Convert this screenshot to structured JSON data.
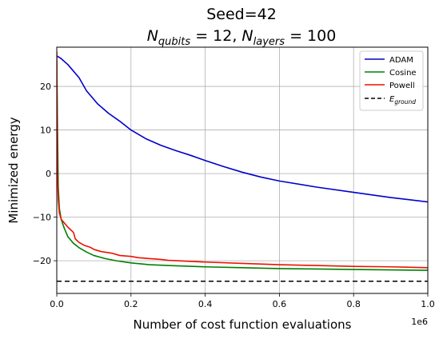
{
  "chart_data": {
    "type": "line",
    "title": "Seed=42",
    "subtitle": {
      "n_sym": "N",
      "qubits_sub": "qubits",
      "qubits_val": " = 12, ",
      "layers_sub": "layers",
      "layers_val": " = 100"
    },
    "xlabel": "Number of cost function evaluations",
    "ylabel": "Minimized energy",
    "x_offset_label": "1e6",
    "xlim": [
      0,
      1.0
    ],
    "ylim": [
      -27.5,
      29.0
    ],
    "x_tick_values": [
      0.0,
      0.2,
      0.4,
      0.6,
      0.8,
      1.0
    ],
    "x_tick_labels": [
      "0.0",
      "0.2",
      "0.4",
      "0.6",
      "0.8",
      "1.0"
    ],
    "y_tick_values": [
      -20,
      -10,
      0,
      10,
      20
    ],
    "y_tick_labels": [
      "−20",
      "−10",
      "0",
      "10",
      "20"
    ],
    "grid": true,
    "legend_position": "top-right",
    "series": [
      {
        "name": "ADAM",
        "color": "#0000cc",
        "dash": "solid",
        "points": [
          [
            0.0,
            27.0
          ],
          [
            0.01,
            26.5
          ],
          [
            0.03,
            25.0
          ],
          [
            0.06,
            22.0
          ],
          [
            0.08,
            19.0
          ],
          [
            0.11,
            16.0
          ],
          [
            0.14,
            13.8
          ],
          [
            0.17,
            12.0
          ],
          [
            0.2,
            10.0
          ],
          [
            0.24,
            8.0
          ],
          [
            0.28,
            6.5
          ],
          [
            0.32,
            5.3
          ],
          [
            0.36,
            4.2
          ],
          [
            0.4,
            3.0
          ],
          [
            0.45,
            1.6
          ],
          [
            0.5,
            0.3
          ],
          [
            0.55,
            -0.8
          ],
          [
            0.6,
            -1.7
          ],
          [
            0.7,
            -3.1
          ],
          [
            0.8,
            -4.3
          ],
          [
            0.9,
            -5.5
          ],
          [
            1.0,
            -6.5
          ]
        ]
      },
      {
        "name": "Cosine",
        "color": "#008000",
        "dash": "solid",
        "points": [
          [
            0.0,
            26.0
          ],
          [
            0.002,
            10.0
          ],
          [
            0.004,
            -3.0
          ],
          [
            0.007,
            -8.0
          ],
          [
            0.012,
            -10.5
          ],
          [
            0.02,
            -12.5
          ],
          [
            0.03,
            -14.5
          ],
          [
            0.045,
            -16.0
          ],
          [
            0.06,
            -17.0
          ],
          [
            0.08,
            -18.0
          ],
          [
            0.1,
            -18.8
          ],
          [
            0.13,
            -19.5
          ],
          [
            0.16,
            -20.0
          ],
          [
            0.2,
            -20.5
          ],
          [
            0.25,
            -20.9
          ],
          [
            0.3,
            -21.1
          ],
          [
            0.4,
            -21.4
          ],
          [
            0.5,
            -21.6
          ],
          [
            0.6,
            -21.8
          ],
          [
            0.7,
            -21.9
          ],
          [
            0.8,
            -22.0
          ],
          [
            0.9,
            -22.1
          ],
          [
            1.0,
            -22.2
          ]
        ]
      },
      {
        "name": "Powell",
        "color": "#ee1100",
        "dash": "solid",
        "points": [
          [
            0.0,
            28.0
          ],
          [
            0.002,
            0.0
          ],
          [
            0.004,
            -6.0
          ],
          [
            0.007,
            -9.0
          ],
          [
            0.012,
            -10.5
          ],
          [
            0.02,
            -11.3
          ],
          [
            0.03,
            -12.3
          ],
          [
            0.045,
            -13.5
          ],
          [
            0.05,
            -15.0
          ],
          [
            0.06,
            -15.8
          ],
          [
            0.075,
            -16.5
          ],
          [
            0.09,
            -16.9
          ],
          [
            0.1,
            -17.4
          ],
          [
            0.12,
            -17.9
          ],
          [
            0.15,
            -18.3
          ],
          [
            0.17,
            -18.8
          ],
          [
            0.2,
            -19.0
          ],
          [
            0.22,
            -19.3
          ],
          [
            0.25,
            -19.5
          ],
          [
            0.28,
            -19.7
          ],
          [
            0.3,
            -19.9
          ],
          [
            0.35,
            -20.1
          ],
          [
            0.4,
            -20.3
          ],
          [
            0.5,
            -20.6
          ],
          [
            0.6,
            -20.9
          ],
          [
            0.7,
            -21.1
          ],
          [
            0.8,
            -21.3
          ],
          [
            0.9,
            -21.4
          ],
          [
            1.0,
            -21.6
          ]
        ]
      },
      {
        "name": "E_ground",
        "color": "#000000",
        "dash": "dashed",
        "points": [
          [
            0.0,
            -24.7
          ],
          [
            1.0,
            -24.7
          ]
        ]
      }
    ],
    "legend": [
      {
        "label": "ADAM",
        "color": "#0000cc",
        "dash": "solid"
      },
      {
        "label": "Cosine",
        "color": "#008000",
        "dash": "solid"
      },
      {
        "label": "Powell",
        "color": "#ee1100",
        "dash": "solid"
      },
      {
        "label": "E",
        "sub": "ground",
        "color": "#000000",
        "dash": "dashed"
      }
    ]
  }
}
